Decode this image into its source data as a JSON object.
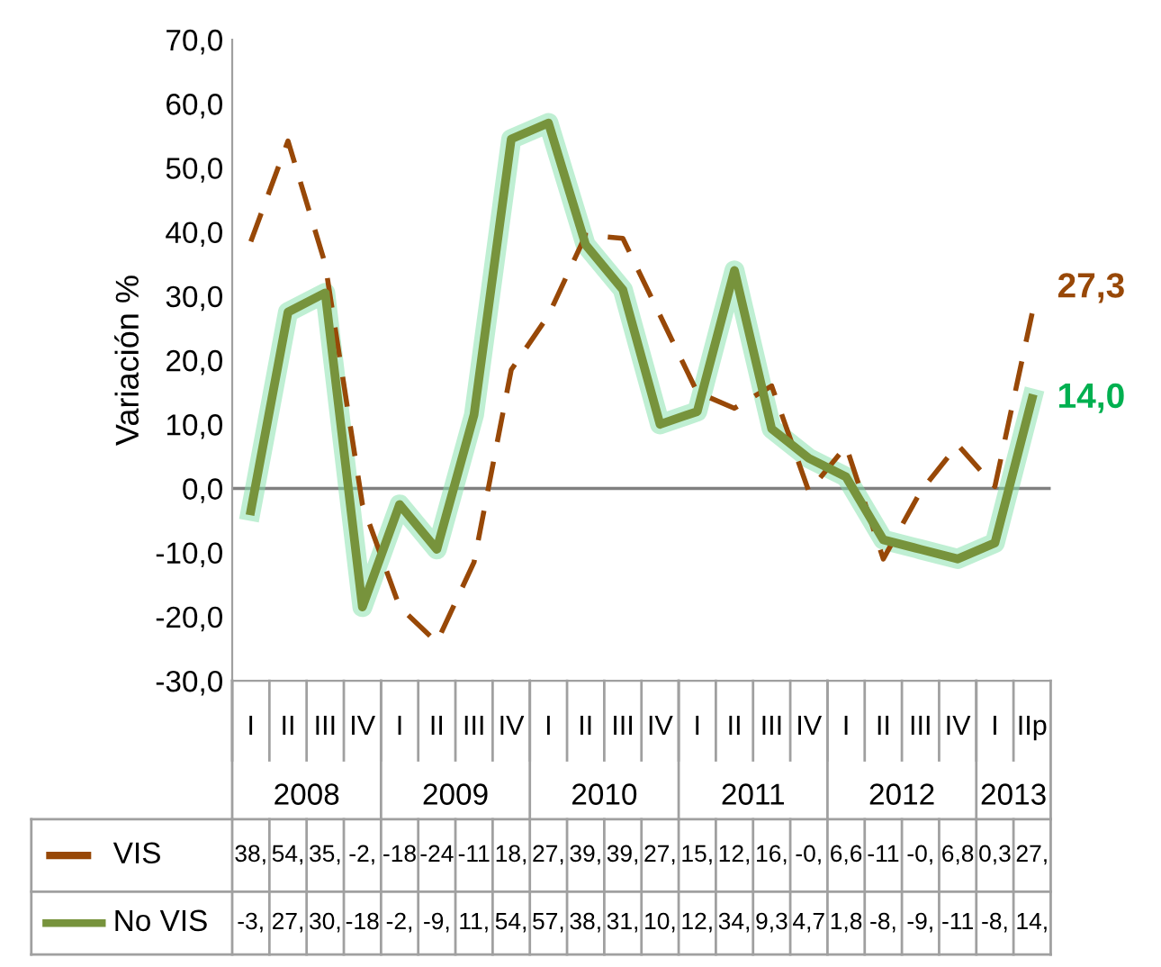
{
  "chart_data": {
    "type": "line",
    "ylabel": "Variación %",
    "categories": [
      "I",
      "II",
      "III",
      "IV",
      "I",
      "II",
      "III",
      "IV",
      "I",
      "II",
      "III",
      "IV",
      "I",
      "II",
      "III",
      "IV",
      "I",
      "II",
      "III",
      "IV",
      "I",
      "IIp"
    ],
    "series": [
      {
        "name": "VIS",
        "color": "#984807",
        "line_style": "dashed",
        "values": [
          38.5,
          54.2,
          35.0,
          -2.5,
          -18.5,
          -24.0,
          -11.5,
          18.5,
          27.0,
          39.5,
          39.0,
          27.0,
          15.0,
          12.5,
          16.0,
          -0.5,
          6.6,
          -11.0,
          -0.5,
          6.8,
          0.3,
          27.3
        ],
        "value_labels": [
          "38,",
          "54,",
          "35,",
          "-2,",
          "-18",
          "-24",
          "-11",
          "18,",
          "27,",
          "39,",
          "39,",
          "27,",
          "15,",
          "12,",
          "16,",
          "-0,",
          "6,6",
          "-11",
          "-0,",
          "6,8",
          "0,3",
          "27,"
        ]
      },
      {
        "name": "No VIS",
        "color": "#77933c",
        "line_style": "solid",
        "values": [
          -3.5,
          27.5,
          30.5,
          -18.5,
          -2.5,
          -9.5,
          11.5,
          54.5,
          57.0,
          38.0,
          31.0,
          10.0,
          12.0,
          34.0,
          9.3,
          4.7,
          1.8,
          -8.0,
          -9.5,
          -11.0,
          -8.5,
          14.0
        ],
        "value_labels": [
          "-3,",
          "27,",
          "30,",
          "-18",
          "-2,",
          "-9,",
          "11,",
          "54,",
          "57,",
          "38,",
          "31,",
          "10,",
          "12,",
          "34,",
          "9,3",
          "4,7",
          "1,8",
          "-8,",
          "-9,",
          "-11",
          "-8,",
          "14,"
        ]
      }
    ],
    "ylim": [
      -30,
      70
    ],
    "yticks": [
      {
        "value": -30,
        "label": "-30,0"
      },
      {
        "value": -20,
        "label": "-20,0"
      },
      {
        "value": -10,
        "label": "-10,0"
      },
      {
        "value": 0,
        "label": "0,0"
      },
      {
        "value": 10,
        "label": "10,0"
      },
      {
        "value": 20,
        "label": "20,0"
      },
      {
        "value": 30,
        "label": "30,0"
      },
      {
        "value": 40,
        "label": "40,0"
      },
      {
        "value": 50,
        "label": "50,0"
      },
      {
        "value": 60,
        "label": "60,0"
      },
      {
        "value": 70,
        "label": "70,0"
      }
    ],
    "ref_lines": [
      {
        "axis": "y",
        "value": 0,
        "color": "#808080"
      }
    ],
    "annotations": [
      "2008",
      "2009",
      "2010",
      "2011",
      "2012",
      "2013",
      {
        "text": "27,3",
        "x": "IIp",
        "y": 27.3
      },
      {
        "text": "14,0",
        "x": "IIp",
        "y": 14.0
      }
    ],
    "grid": false,
    "legend": "bottom",
    "marker": "none"
  }
}
